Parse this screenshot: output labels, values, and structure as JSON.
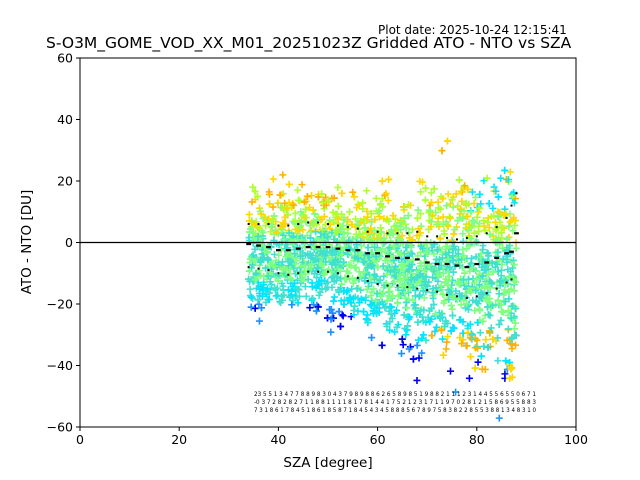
{
  "header": {
    "plot_date": "Plot date: 2025-10-24 12:15:41",
    "title": "S-O3M_GOME_VOD_XX_M01_20251023Z Gridded ATO - NTO vs SZA"
  },
  "chart_data": {
    "type": "scatter",
    "title": "S-O3M_GOME_VOD_XX_M01_20251023Z Gridded ATO - NTO vs SZA",
    "xlabel": "SZA [degree]",
    "ylabel": "ATO - NTO [DU]",
    "xlim": [
      0,
      100
    ],
    "ylim": [
      -60,
      60
    ],
    "xticks": [
      0,
      20,
      40,
      60,
      80,
      100
    ],
    "yticks": [
      -60,
      -40,
      -20,
      0,
      20,
      40,
      60
    ],
    "xtick_labels": [
      "0",
      "20",
      "40",
      "60",
      "80",
      "100"
    ],
    "ytick_labels": [
      "−60",
      "−40",
      "−20",
      "0",
      "20",
      "40",
      "60"
    ],
    "reference_line_y": 0,
    "marker": "+",
    "scatter_colors": [
      "#0000ee",
      "#1e90ff",
      "#00e5ff",
      "#40e0d0",
      "#7fff7f",
      "#adff2f",
      "#ffd700",
      "#ffb000"
    ],
    "scatter_envelope": {
      "sza_range": [
        34,
        88
      ],
      "core_upper": [
        [
          34,
          15
        ],
        [
          40,
          18
        ],
        [
          50,
          18
        ],
        [
          60,
          18
        ],
        [
          65,
          18
        ],
        [
          70,
          20
        ],
        [
          75,
          22
        ],
        [
          80,
          25
        ],
        [
          85,
          25
        ],
        [
          88,
          25
        ]
      ],
      "core_lower": [
        [
          34,
          -22
        ],
        [
          40,
          -24
        ],
        [
          50,
          -22
        ],
        [
          55,
          -28
        ],
        [
          60,
          -32
        ],
        [
          65,
          -34
        ],
        [
          70,
          -38
        ],
        [
          75,
          -40
        ],
        [
          80,
          -42
        ],
        [
          85,
          -45
        ],
        [
          88,
          -50
        ]
      ]
    },
    "series": [
      {
        "name": "mean",
        "style": "solid",
        "color": "#000000",
        "x": [
          34,
          36,
          38,
          40,
          42,
          44,
          46,
          48,
          50,
          52,
          54,
          56,
          58,
          60,
          62,
          64,
          66,
          68,
          70,
          72,
          74,
          76,
          78,
          80,
          82,
          84,
          86,
          87,
          88
        ],
        "y": [
          -0.5,
          -1,
          -1.5,
          -2.5,
          -2.5,
          -2,
          -1.5,
          -1.5,
          -1.5,
          -2,
          -2.5,
          -2.5,
          -3.5,
          -3.5,
          -4.5,
          -5,
          -5,
          -5.5,
          -6.5,
          -7,
          -7,
          -7.5,
          -8,
          -7,
          -6.5,
          -5,
          -3.5,
          -3,
          3
        ]
      },
      {
        "name": "upper",
        "style": "dotted",
        "color": "#000000",
        "x": [
          34,
          36,
          38,
          40,
          42,
          44,
          46,
          48,
          50,
          52,
          54,
          56,
          58,
          60,
          62,
          64,
          66,
          68,
          70,
          72,
          74,
          76,
          78,
          80,
          82,
          84,
          86,
          87,
          88
        ],
        "y": [
          6,
          6,
          6,
          5.5,
          5.5,
          6,
          6.5,
          6.5,
          6,
          5.5,
          5,
          4.5,
          3.5,
          3.5,
          3,
          3,
          3,
          3.5,
          2,
          2,
          1.5,
          1,
          1.5,
          2,
          3,
          5,
          8,
          12,
          16
        ]
      },
      {
        "name": "lower",
        "style": "dotted",
        "color": "#000000",
        "x": [
          34,
          36,
          38,
          40,
          42,
          44,
          46,
          48,
          50,
          52,
          54,
          56,
          58,
          60,
          62,
          64,
          66,
          68,
          70,
          72,
          74,
          76,
          78,
          80,
          82,
          84,
          86,
          87
        ],
        "y": [
          -8,
          -8.5,
          -9,
          -10,
          -10.5,
          -10,
          -9.5,
          -9.5,
          -9.5,
          -10,
          -11,
          -11.5,
          -12.5,
          -13.5,
          -14,
          -14,
          -14.5,
          -15,
          -15.5,
          -16,
          -17,
          -17.5,
          -18,
          -17.5,
          -16.5,
          -15,
          -13,
          -12
        ]
      }
    ],
    "count_labels": {
      "font_size_px": 6.5,
      "rows": [
        "23 5 5 1 3 4 7 7 8 8 9 8 3 0 4 3 7 9 8 9 8 8 6 2 6 5 8 9 8 5 1 9 8 8 2 1 1 1 2 3 1 4 4 5 5 6 5 5 0 6 7 1",
        "-0 3 7 2 8 2 8 2 7 1 1 8 8 1 1 1 1 8 1 7 8 1 4 4 1 7 5 2 1 2 3 1 7 1 1 9 7 0 2 8 1 2 1 5 8 6 9 5 5 8 8 3",
        "7 3 1 8 6 1 7 8 4 5 1 8 6 1 8 5 8 7 1 8 4 5 4 3 4 5 8 8 8 5 6 7 8 9 7 5 8 3 8 2 2 8 5 5 3 8 8 1 3 4 8 3 1 0"
      ]
    }
  }
}
